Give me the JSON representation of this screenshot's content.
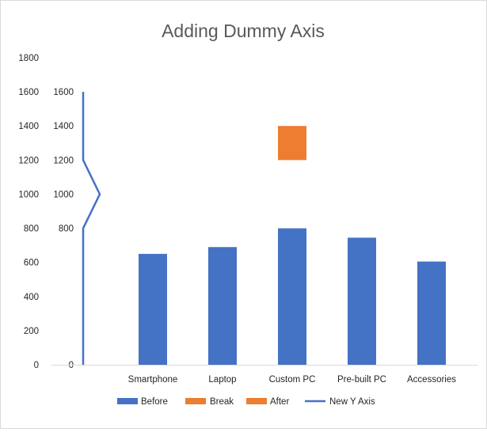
{
  "chart_data": {
    "type": "bar",
    "title": "Adding Dummy Axis",
    "xlabel": "",
    "ylabel": "",
    "ylim": [
      0,
      1800
    ],
    "yticks": [
      0,
      200,
      400,
      600,
      800,
      1000,
      1200,
      1400,
      1600,
      1800
    ],
    "grid": false,
    "legend_position": "bottom",
    "categories": [
      "Smartphone",
      "Laptop",
      "Custom PC",
      "Pre-built PC",
      "Accessories"
    ],
    "series": [
      {
        "name": "Before",
        "type": "bar",
        "color": "#4472c4",
        "values": [
          650,
          690,
          800,
          745,
          605
        ]
      },
      {
        "name": "Break",
        "type": "bar",
        "color": "#ed7d31",
        "values": [
          0,
          0,
          1200,
          0,
          0
        ]
      },
      {
        "name": "After",
        "type": "bar",
        "color": "#ed7d31",
        "values": [
          0,
          0,
          1400,
          0,
          0
        ]
      },
      {
        "name": "New Y Axis",
        "type": "line",
        "color": "#4472c4",
        "points": [
          [
            0,
            1600
          ],
          [
            0,
            1200
          ],
          [
            1,
            1000
          ],
          [
            0,
            800
          ],
          [
            0,
            0
          ]
        ]
      }
    ],
    "new_axis_labels": [
      1600,
      1400,
      1200,
      1000,
      800,
      0
    ]
  }
}
